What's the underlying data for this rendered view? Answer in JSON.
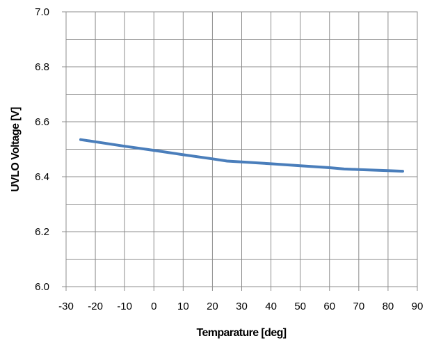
{
  "chart_data": {
    "type": "line",
    "title": "",
    "xlabel": "Temparature [deg]",
    "ylabel": "UVLO Voltage [V]",
    "xlim": [
      -30,
      90
    ],
    "ylim": [
      6.0,
      7.0
    ],
    "xticks": [
      "-30",
      "-20",
      "-10",
      "0",
      "10",
      "20",
      "30",
      "40",
      "50",
      "60",
      "70",
      "80",
      "90"
    ],
    "yticks": [
      "6.0",
      "6.2",
      "6.4",
      "6.6",
      "6.8",
      "7.0"
    ],
    "x_gridline_step": 10,
    "y_gridline_step": 0.1,
    "grid": true,
    "legend": "none",
    "series": [
      {
        "color": "#4a7ebb",
        "x": [
          -25,
          -20,
          -10,
          0,
          10,
          20,
          25,
          30,
          40,
          50,
          60,
          65,
          70,
          80,
          85
        ],
        "y": [
          6.535,
          6.527,
          6.511,
          6.496,
          6.48,
          6.465,
          6.457,
          6.454,
          6.447,
          6.44,
          6.433,
          6.428,
          6.426,
          6.422,
          6.42
        ]
      }
    ]
  }
}
